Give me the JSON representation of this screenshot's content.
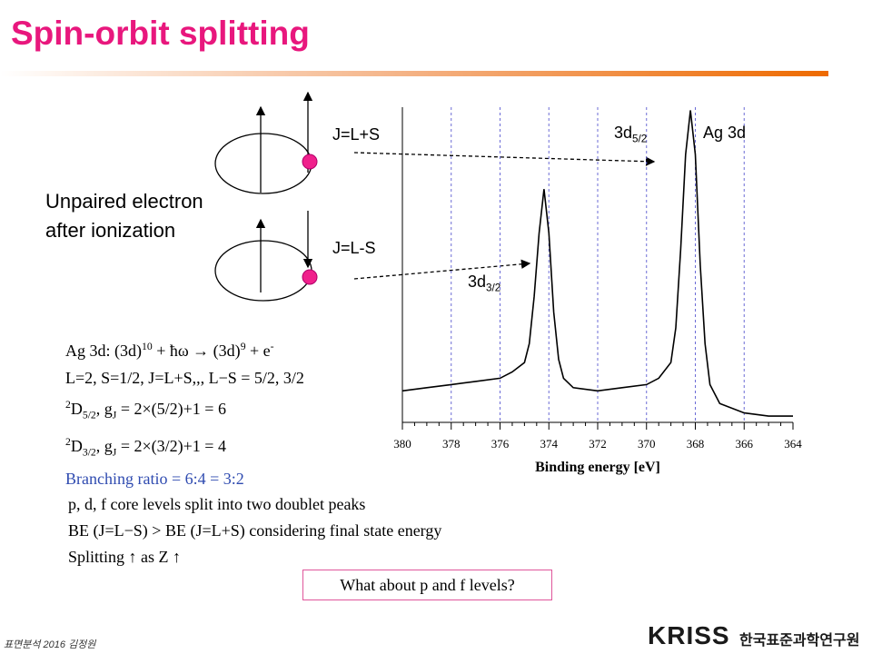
{
  "slide": {
    "title": "Spin-orbit splitting",
    "state_upper": "J=L+S",
    "state_lower": "J=L-S",
    "note": [
      "Unpaired electron",
      "after ionization"
    ],
    "peak_upper": [
      "3d",
      {
        "sub": "5/2"
      }
    ],
    "peak_lower": [
      "3d",
      {
        "sub": "3/2"
      }
    ],
    "element": "Ag 3d",
    "formula": [
      [
        "Ag 3d: (3d)",
        {
          "sup": "10"
        },
        " + ħω → (3d)",
        {
          "sup": "9"
        },
        " + e",
        {
          "sup": "-"
        }
      ],
      [
        "L=2, S=1/2, J=L+S,,, L−S = 5/2, 3/2"
      ],
      [
        {
          "sup": "2"
        },
        "D",
        {
          "sub": "5/2"
        },
        ", g",
        {
          "sub": "J"
        },
        " = 2×(5/2)+1 = 6"
      ],
      [
        {
          "sup": "2"
        },
        "D",
        {
          "sub": "3/2"
        },
        ", g",
        {
          "sub": "J"
        },
        " = 2×(3/2)+1 = 4"
      ],
      [
        "Branching ratio = 6:4 = 3:2"
      ]
    ],
    "points": [
      "p, d, f core levels split into two doublet peaks",
      "BE (J=L−S) > BE (J=L+S) considering final state energy",
      "Splitting ↑ as Z ↑"
    ],
    "question": "What about p and f levels?",
    "footer": "표면분석 2016 김정원",
    "logo": "KRISS",
    "logo_org": "한국표준과학연구원"
  },
  "chart_data": {
    "type": "line",
    "x_label": "Binding energy [eV]",
    "x": [
      380,
      379,
      378,
      377,
      376,
      375.5,
      375,
      374.8,
      374.6,
      374.4,
      374.2,
      374,
      373.8,
      373.6,
      373.4,
      373,
      372,
      371,
      370,
      369.5,
      369,
      368.8,
      368.6,
      368.4,
      368.2,
      368,
      367.8,
      367.6,
      367.4,
      367,
      366,
      365,
      364
    ],
    "series": [
      {
        "color": "#000000",
        "values": [
          10,
          11,
          12,
          13,
          14,
          16,
          19,
          25,
          40,
          60,
          74,
          60,
          35,
          20,
          14,
          11,
          10,
          11,
          12,
          14,
          19,
          30,
          55,
          85,
          99,
          85,
          50,
          25,
          12,
          6,
          3,
          2,
          2
        ]
      }
    ],
    "xlim": [
      380,
      364
    ],
    "ylim": [
      0,
      100
    ],
    "xticks": [
      380,
      378,
      376,
      374,
      372,
      370,
      368,
      366,
      364
    ],
    "grid": true
  }
}
